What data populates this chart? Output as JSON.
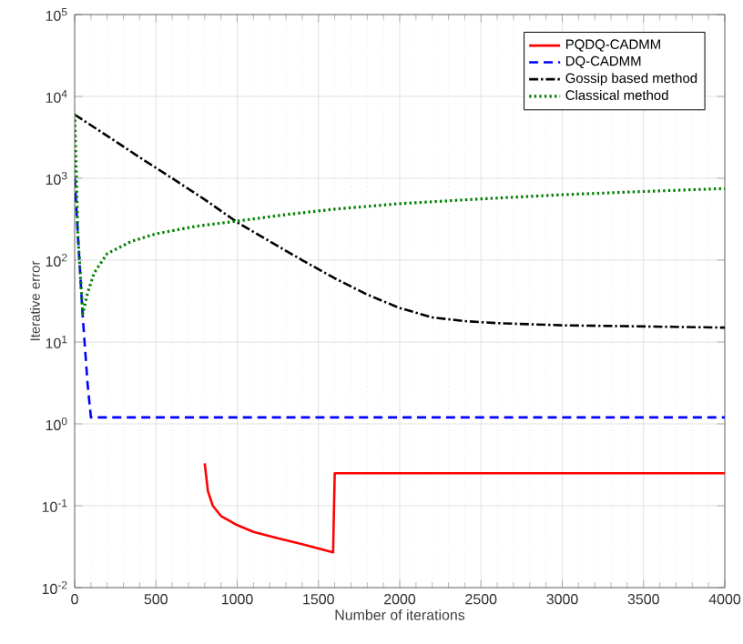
{
  "chart_data": {
    "type": "line",
    "xlabel": "Number of iterations",
    "ylabel": "Iterative error",
    "log": "y",
    "grid": true,
    "legend": "top right",
    "marker": "none",
    "xlim": [
      0,
      4000
    ],
    "xticks": [
      0,
      500,
      1000,
      1500,
      2000,
      2500,
      3000,
      3500,
      4000
    ],
    "ylim": [
      0.01,
      100000
    ],
    "yticks": [
      {
        "value": 0.01,
        "label": "10$^{-2}$"
      },
      {
        "value": 0.1,
        "label": "10$^{-1}$"
      },
      {
        "value": 1,
        "label": "10$^{0}$"
      },
      {
        "value": 10,
        "label": "10$^{1}$"
      },
      {
        "value": 100,
        "label": "10$^{2}$"
      },
      {
        "value": 1000,
        "label": "10$^{3}$"
      },
      {
        "value": 10000,
        "label": "10$^{4}$"
      },
      {
        "value": 100000,
        "label": "10$^{5}$"
      }
    ],
    "series": [
      {
        "name": "PQDQ-CADMM",
        "color": "#ff0000",
        "line_style": "solid",
        "x": [
          800,
          820,
          850,
          900,
          1000,
          1100,
          1250,
          1400,
          1590,
          1600,
          2000,
          3000,
          4000
        ],
        "values": [
          0.33,
          0.15,
          0.1,
          0.075,
          0.058,
          0.048,
          0.04,
          0.034,
          0.027,
          0.25,
          0.25,
          0.25,
          0.25
        ]
      },
      {
        "name": "DQ-CADMM",
        "color": "#0000ff",
        "line_style": "dashed",
        "x": [
          0,
          20,
          50,
          80,
          100,
          110,
          2000,
          4000
        ],
        "values": [
          1000,
          200,
          20,
          3,
          1.2,
          1.2,
          1.2,
          1.2
        ]
      },
      {
        "name": "Gossip based method",
        "color": "#000000",
        "line_style": "dashdot",
        "x": [
          0,
          200,
          400,
          600,
          800,
          1000,
          1200,
          1400,
          1600,
          1800,
          2000,
          2200,
          2400,
          2600,
          3000,
          3500,
          4000
        ],
        "values": [
          6000,
          3300,
          1800,
          1000,
          550,
          290,
          170,
          100,
          60,
          38,
          26,
          20,
          18,
          17,
          16,
          15.5,
          15
        ]
      },
      {
        "name": "Classical method",
        "color": "#008000",
        "line_style": "dotted",
        "x": [
          0,
          20,
          50,
          80,
          120,
          200,
          350,
          500,
          750,
          1000,
          1300,
          1600,
          2000,
          2500,
          3000,
          3500,
          4000
        ],
        "values": [
          6000,
          200,
          22,
          40,
          70,
          120,
          170,
          210,
          260,
          300,
          360,
          420,
          490,
          560,
          630,
          690,
          750
        ]
      }
    ]
  }
}
